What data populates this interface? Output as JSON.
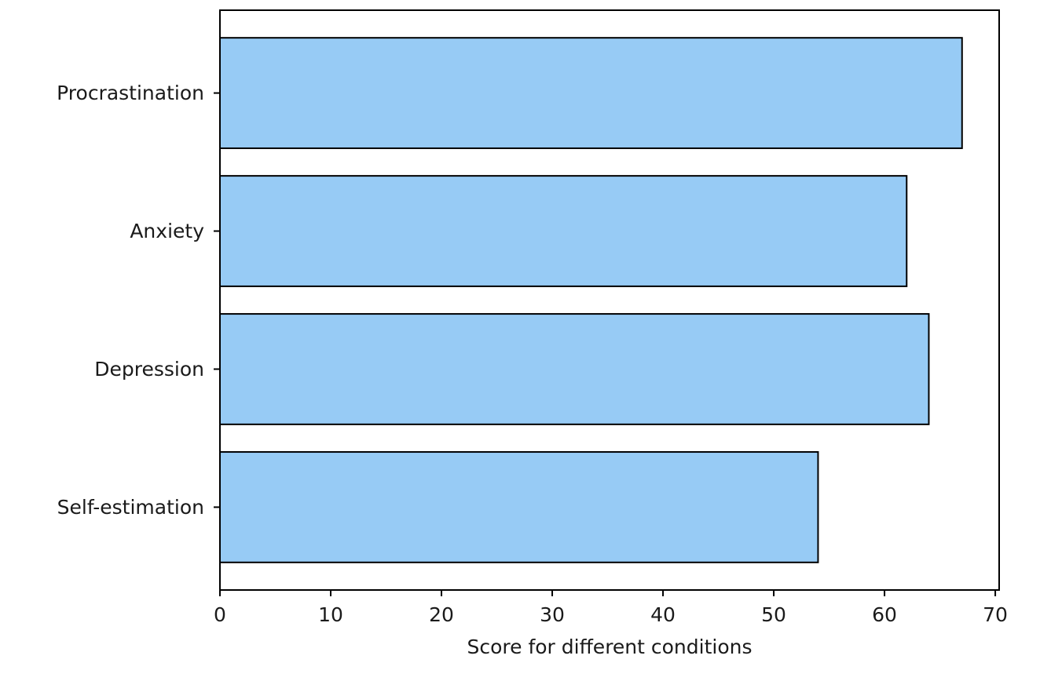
{
  "chart_data": {
    "type": "bar",
    "orientation": "horizontal",
    "categories": [
      "Procrastination",
      "Anxiety",
      "Depression",
      "Self-estimation"
    ],
    "values": [
      67,
      62,
      64,
      54
    ],
    "xlabel": "Score for different conditions",
    "ylabel": "",
    "title": "",
    "xlim": [
      0,
      70.35
    ],
    "xticks": [
      0,
      10,
      20,
      30,
      40,
      50,
      60,
      70
    ],
    "xtick_labels": [
      "0",
      "10",
      "20",
      "30",
      "40",
      "50",
      "60",
      "70"
    ],
    "grid": false,
    "bar_color": "#97cbf5",
    "edge_color": "#000000"
  }
}
